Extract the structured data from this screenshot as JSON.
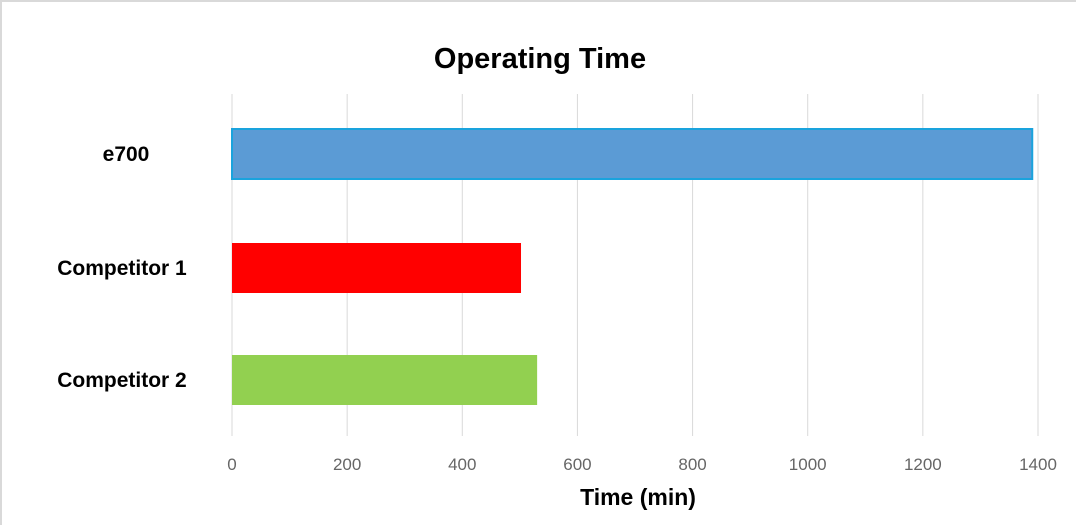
{
  "chart_data": {
    "type": "bar",
    "orientation": "horizontal",
    "title": "Operating Time",
    "xlabel": "Time (min)",
    "ylabel": "",
    "categories": [
      "e700",
      "Competitor 1",
      "Competitor 2"
    ],
    "values": [
      1390,
      502,
      530
    ],
    "colors": [
      "#5b9bd5",
      "#ff0000",
      "#92d050"
    ],
    "xlim": [
      0,
      1400
    ],
    "xticks": [
      0,
      200,
      400,
      600,
      800,
      1000,
      1200,
      1400
    ],
    "grid": true,
    "legend": "none"
  }
}
